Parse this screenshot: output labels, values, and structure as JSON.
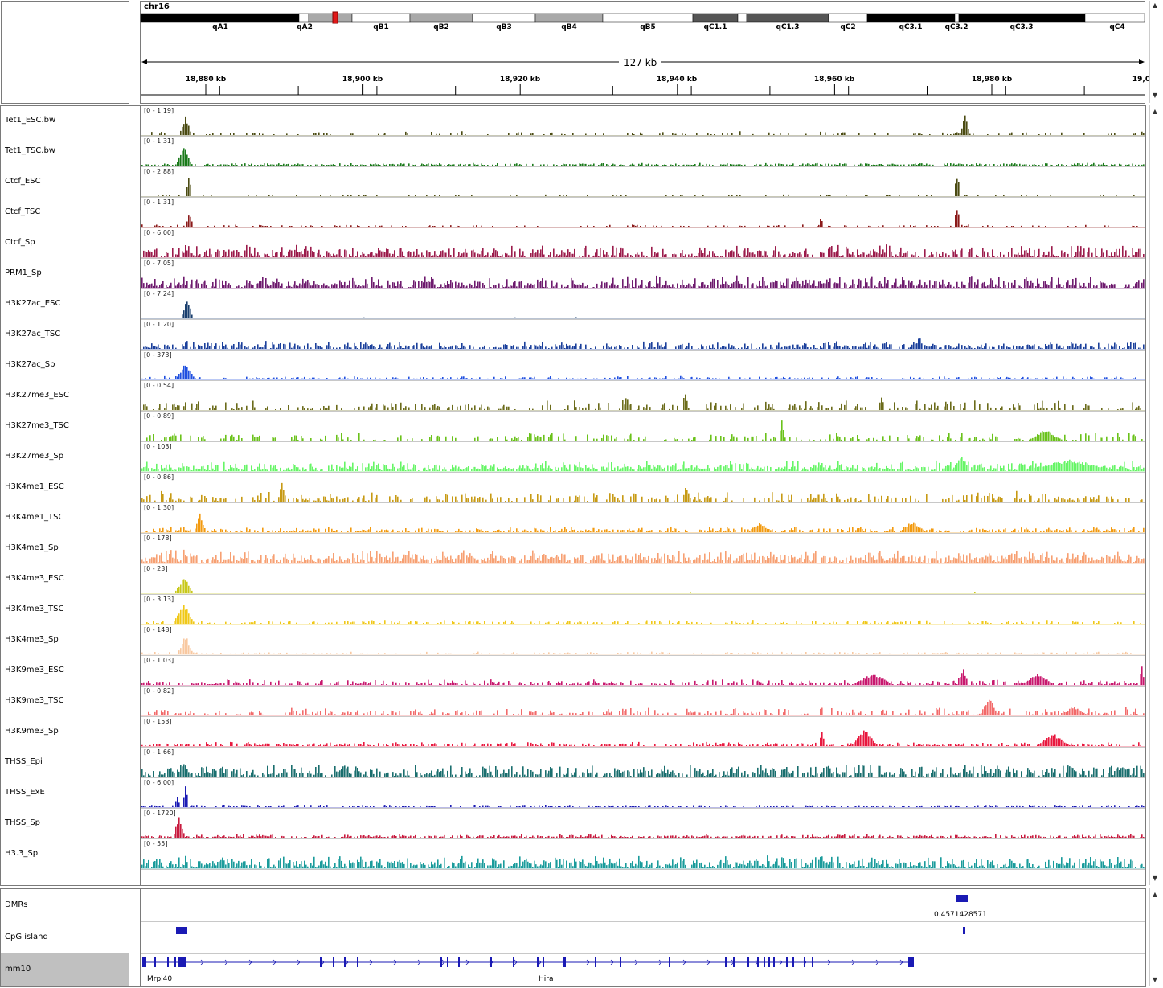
{
  "chromosome": "chr16",
  "ideogram_bands": [
    {
      "label": "qA1",
      "color": "#000000"
    },
    {
      "label": "qA2",
      "color": "#ffffff"
    },
    {
      "label": "qB1",
      "color": "#ffffff"
    },
    {
      "label": "qB2",
      "color": "#a9a9a9"
    },
    {
      "label": "qB3",
      "color": "#ffffff"
    },
    {
      "label": "qB4",
      "color": "#a9a9a9"
    },
    {
      "label": "qB5",
      "color": "#ffffff"
    },
    {
      "label": "qC1.1",
      "color": "#555555"
    },
    {
      "label": "qC1.3",
      "color": "#555555"
    },
    {
      "label": "qC2",
      "color": "#ffffff"
    },
    {
      "label": "qC3.1",
      "color": "#000000"
    },
    {
      "label": "qC3.2",
      "color": "#ffffff"
    },
    {
      "label": "qC3.3",
      "color": "#000000"
    },
    {
      "label": "qC4",
      "color": "#ffffff"
    }
  ],
  "region_span": "127 kb",
  "positions": [
    "18,880 kb",
    "18,900 kb",
    "18,920 kb",
    "18,940 kb",
    "18,960 kb",
    "18,980 kb",
    "19,0"
  ],
  "tracks": [
    {
      "name": "Tet1_ESC.bw",
      "range": "[0 - 1.19]",
      "color": "#4b4b12"
    },
    {
      "name": "Tet1_TSC.bw",
      "range": "[0 - 1.31]",
      "color": "#1a7a1a"
    },
    {
      "name": "Ctcf_ESC",
      "range": "[0 - 2.88]",
      "color": "#4b4b12"
    },
    {
      "name": "Ctcf_TSC",
      "range": "[0 - 1.31]",
      "color": "#8b1a1a"
    },
    {
      "name": "Ctcf_Sp",
      "range": "[0 - 6.00]",
      "color": "#9b1b4b"
    },
    {
      "name": "PRM1_Sp",
      "range": "[0 - 7.05]",
      "color": "#6e1a6e"
    },
    {
      "name": "H3K27ac_ESC",
      "range": "[0 - 7.24]",
      "color": "#1a3f6e"
    },
    {
      "name": "H3K27ac_TSC",
      "range": "[0 - 1.20]",
      "color": "#1a3f9b"
    },
    {
      "name": "H3K27ac_Sp",
      "range": "[0 - 373]",
      "color": "#1f4fe0"
    },
    {
      "name": "H3K27me3_ESC",
      "range": "[0 - 0.54]",
      "color": "#6b6b1a"
    },
    {
      "name": "H3K27me3_TSC",
      "range": "[0 - 0.89]",
      "color": "#6ac21a"
    },
    {
      "name": "H3K27me3_Sp",
      "range": "[0 - 103]",
      "color": "#66f566"
    },
    {
      "name": "H3K4me1_ESC",
      "range": "[0 - 0.86]",
      "color": "#c79a14"
    },
    {
      "name": "H3K4me1_TSC",
      "range": "[0 - 1.30]",
      "color": "#f29a0f"
    },
    {
      "name": "H3K4me1_Sp",
      "range": "[0 - 178]",
      "color": "#f7a072"
    },
    {
      "name": "H3K4me3_ESC",
      "range": "[0 - 23]",
      "color": "#c8c81a"
    },
    {
      "name": "H3K4me3_TSC",
      "range": "[0 - 3.13]",
      "color": "#f0c818"
    },
    {
      "name": "H3K4me3_Sp",
      "range": "[0 - 148]",
      "color": "#f8c8a0"
    },
    {
      "name": "H3K9me3_ESC",
      "range": "[0 - 1.03]",
      "color": "#c8186e"
    },
    {
      "name": "H3K9me3_TSC",
      "range": "[0 - 0.82]",
      "color": "#f26a6a"
    },
    {
      "name": "H3K9me3_Sp",
      "range": "[0 - 153]",
      "color": "#e8183e"
    },
    {
      "name": "THSS_Epi",
      "range": "[0 - 1.66]",
      "color": "#1a6e6e"
    },
    {
      "name": "THSS_ExE",
      "range": "[0 - 6.00]",
      "color": "#1a1ab4"
    },
    {
      "name": "THSS_Sp",
      "range": "[0 - 1720]",
      "color": "#c81a3e"
    },
    {
      "name": "H3.3_Sp",
      "range": "[0 - 55]",
      "color": "#1a9b9b"
    }
  ],
  "feature_tracks": {
    "dmrs": {
      "name": "DMRs",
      "value": "0.4571428571",
      "color": "#1a1ab4"
    },
    "cpg": {
      "name": "CpG island",
      "color": "#1a1ab4"
    },
    "genome": {
      "name": "mm10",
      "color": "#1a1ab4",
      "genes": [
        "Mrpl40",
        "Hira"
      ]
    }
  }
}
